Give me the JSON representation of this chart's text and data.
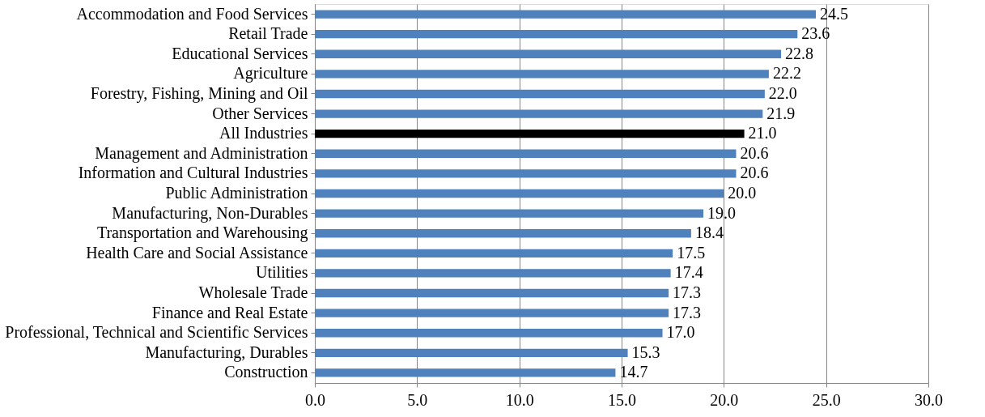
{
  "chart_data": {
    "type": "bar",
    "orientation": "horizontal",
    "categories": [
      "Accommodation and Food Services",
      "Retail Trade",
      "Educational Services",
      "Agriculture",
      "Forestry, Fishing, Mining and Oil",
      "Other Services",
      "All Industries",
      "Management and Administration",
      "Information and Cultural Industries",
      "Public Administration",
      "Manufacturing, Non-Durables",
      "Transportation and Warehousing",
      "Health Care and Social Assistance",
      "Utilities",
      "Wholesale Trade",
      "Finance and Real Estate",
      "Professional, Technical and Scientific Services",
      "Manufacturing, Durables",
      "Construction"
    ],
    "values": [
      24.5,
      23.6,
      22.8,
      22.2,
      22.0,
      21.9,
      21.0,
      20.6,
      20.6,
      20.0,
      19.0,
      18.4,
      17.5,
      17.4,
      17.3,
      17.3,
      17.0,
      15.3,
      14.7
    ],
    "colors": [
      "#4f81bd",
      "#4f81bd",
      "#4f81bd",
      "#4f81bd",
      "#4f81bd",
      "#4f81bd",
      "#000000",
      "#4f81bd",
      "#4f81bd",
      "#4f81bd",
      "#4f81bd",
      "#4f81bd",
      "#4f81bd",
      "#4f81bd",
      "#4f81bd",
      "#4f81bd",
      "#4f81bd",
      "#4f81bd",
      "#4f81bd"
    ],
    "value_labels": [
      "24.5",
      "23.6",
      "22.8",
      "22.2",
      "22.0",
      "21.9",
      "21.0",
      "20.6",
      "20.6",
      "20.0",
      "19.0",
      "18.4",
      "17.5",
      "17.4",
      "17.3",
      "17.3",
      "17.0",
      "15.3",
      "14.7"
    ],
    "xlim": [
      0,
      30
    ],
    "xticks": [
      {
        "value": 0,
        "label": "0.0"
      },
      {
        "value": 5,
        "label": "5.0"
      },
      {
        "value": 10,
        "label": "10.0"
      },
      {
        "value": 15,
        "label": "15.0"
      },
      {
        "value": 20,
        "label": "20.0"
      },
      {
        "value": 25,
        "label": "25.0"
      },
      {
        "value": 30,
        "label": "30.0"
      }
    ],
    "grid": "x",
    "legend": false
  }
}
